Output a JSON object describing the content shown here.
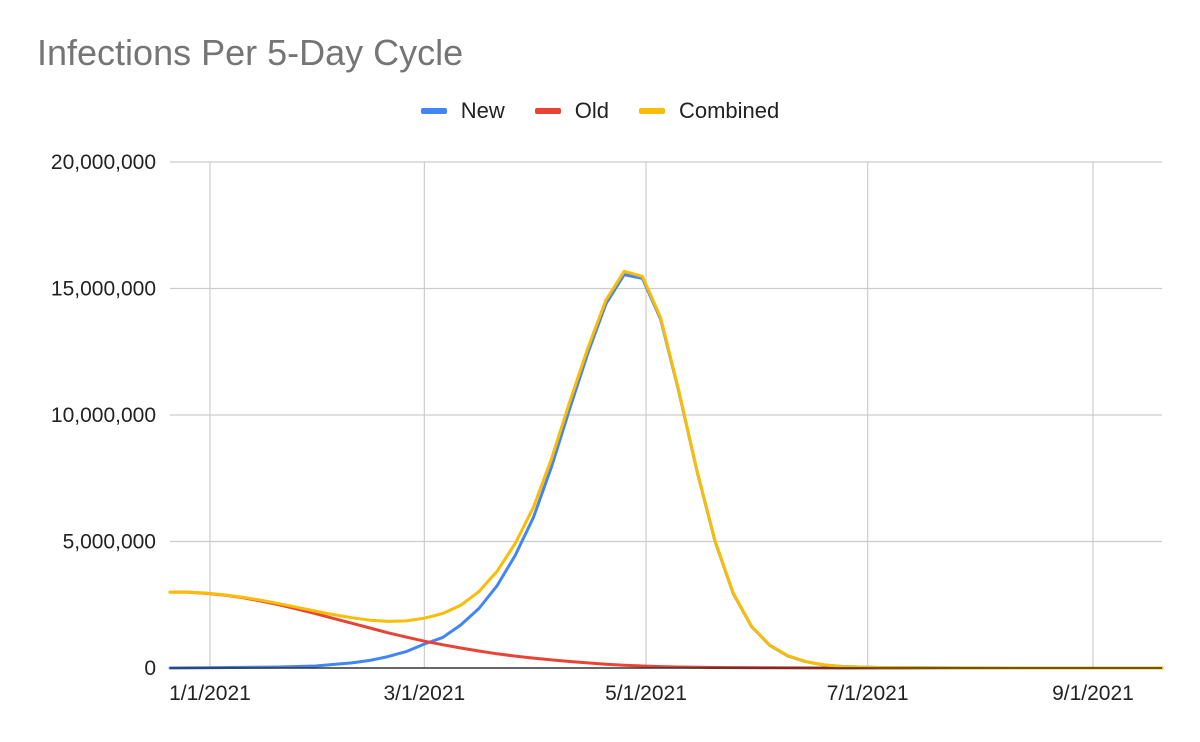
{
  "chart_data": {
    "type": "line",
    "title": "Infections Per 5-Day Cycle",
    "xlabel": "",
    "ylabel": "",
    "ylim": [
      0,
      20000000
    ],
    "y_ticks": [
      "0",
      "5,000,000",
      "10,000,000",
      "15,000,000",
      "20,000,000"
    ],
    "y_tick_values": [
      0,
      5000000,
      10000000,
      15000000,
      20000000
    ],
    "x_ticks": [
      "1/1/2021",
      "3/1/2021",
      "5/1/2021",
      "7/1/2021",
      "9/1/2021"
    ],
    "x_tick_dates": [
      "2021-01-01",
      "2021-03-01",
      "2021-05-01",
      "2021-07-01",
      "2021-09-01"
    ],
    "xlim": [
      "2020-12-21",
      "2021-09-20"
    ],
    "grid": true,
    "legend_position": "top",
    "series": [
      {
        "name": "New",
        "color": "#4285f4",
        "points": [
          [
            "2020-12-21",
            0
          ],
          [
            "2020-12-31",
            10000
          ],
          [
            "2021-01-10",
            25000
          ],
          [
            "2021-01-20",
            40000
          ],
          [
            "2021-01-30",
            80000
          ],
          [
            "2021-02-09",
            200000
          ],
          [
            "2021-02-14",
            300000
          ],
          [
            "2021-02-19",
            450000
          ],
          [
            "2021-02-24",
            650000
          ],
          [
            "2021-03-01",
            950000
          ],
          [
            "2021-03-06",
            1200000
          ],
          [
            "2021-03-11",
            1700000
          ],
          [
            "2021-03-16",
            2350000
          ],
          [
            "2021-03-21",
            3250000
          ],
          [
            "2021-03-26",
            4450000
          ],
          [
            "2021-03-31",
            5950000
          ],
          [
            "2021-04-05",
            7950000
          ],
          [
            "2021-04-10",
            10250000
          ],
          [
            "2021-04-15",
            12450000
          ],
          [
            "2021-04-20",
            14400000
          ],
          [
            "2021-04-25",
            15550000
          ],
          [
            "2021-04-30",
            15400000
          ],
          [
            "2021-05-05",
            13800000
          ],
          [
            "2021-05-10",
            10950000
          ],
          [
            "2021-05-15",
            7800000
          ],
          [
            "2021-05-20",
            5000000
          ],
          [
            "2021-05-25",
            2950000
          ],
          [
            "2021-05-30",
            1650000
          ],
          [
            "2021-06-04",
            900000
          ],
          [
            "2021-06-09",
            480000
          ],
          [
            "2021-06-14",
            250000
          ],
          [
            "2021-06-19",
            120000
          ],
          [
            "2021-06-24",
            60000
          ],
          [
            "2021-07-04",
            20000
          ],
          [
            "2021-07-24",
            5000
          ],
          [
            "2021-08-23",
            0
          ],
          [
            "2021-09-20",
            0
          ]
        ]
      },
      {
        "name": "Old",
        "color": "#ea4335",
        "points": [
          [
            "2020-12-21",
            3000000
          ],
          [
            "2020-12-26",
            3000000
          ],
          [
            "2020-12-31",
            2950000
          ],
          [
            "2021-01-05",
            2880000
          ],
          [
            "2021-01-10",
            2780000
          ],
          [
            "2021-01-15",
            2650000
          ],
          [
            "2021-01-20",
            2500000
          ],
          [
            "2021-01-25",
            2330000
          ],
          [
            "2021-01-30",
            2150000
          ],
          [
            "2021-02-04",
            1960000
          ],
          [
            "2021-02-09",
            1770000
          ],
          [
            "2021-02-14",
            1580000
          ],
          [
            "2021-02-19",
            1390000
          ],
          [
            "2021-02-24",
            1220000
          ],
          [
            "2021-03-01",
            1060000
          ],
          [
            "2021-03-06",
            920000
          ],
          [
            "2021-03-11",
            790000
          ],
          [
            "2021-03-16",
            670000
          ],
          [
            "2021-03-21",
            560000
          ],
          [
            "2021-03-26",
            470000
          ],
          [
            "2021-03-31",
            390000
          ],
          [
            "2021-04-05",
            320000
          ],
          [
            "2021-04-10",
            255000
          ],
          [
            "2021-04-15",
            200000
          ],
          [
            "2021-04-20",
            150000
          ],
          [
            "2021-04-25",
            110000
          ],
          [
            "2021-04-30",
            80000
          ],
          [
            "2021-05-05",
            55000
          ],
          [
            "2021-05-10",
            40000
          ],
          [
            "2021-05-20",
            20000
          ],
          [
            "2021-06-04",
            8000
          ],
          [
            "2021-06-24",
            0
          ],
          [
            "2021-09-20",
            0
          ]
        ]
      },
      {
        "name": "Combined",
        "color": "#fbbc04",
        "points": [
          [
            "2020-12-21",
            3000000
          ],
          [
            "2020-12-26",
            3000000
          ],
          [
            "2020-12-31",
            2960000
          ],
          [
            "2021-01-05",
            2890000
          ],
          [
            "2021-01-10",
            2800000
          ],
          [
            "2021-01-15",
            2680000
          ],
          [
            "2021-01-20",
            2540000
          ],
          [
            "2021-01-25",
            2400000
          ],
          [
            "2021-01-30",
            2250000
          ],
          [
            "2021-02-04",
            2110000
          ],
          [
            "2021-02-09",
            1990000
          ],
          [
            "2021-02-14",
            1890000
          ],
          [
            "2021-02-19",
            1840000
          ],
          [
            "2021-02-24",
            1860000
          ],
          [
            "2021-03-01",
            1970000
          ],
          [
            "2021-03-06",
            2150000
          ],
          [
            "2021-03-11",
            2480000
          ],
          [
            "2021-03-16",
            3020000
          ],
          [
            "2021-03-21",
            3820000
          ],
          [
            "2021-03-26",
            4920000
          ],
          [
            "2021-03-31",
            6350000
          ],
          [
            "2021-04-05",
            8270000
          ],
          [
            "2021-04-10",
            10520000
          ],
          [
            "2021-04-15",
            12650000
          ],
          [
            "2021-04-20",
            14550000
          ],
          [
            "2021-04-25",
            15680000
          ],
          [
            "2021-04-30",
            15480000
          ],
          [
            "2021-05-05",
            13860000
          ],
          [
            "2021-05-10",
            10990000
          ],
          [
            "2021-05-15",
            7820000
          ],
          [
            "2021-05-20",
            5020000
          ],
          [
            "2021-05-25",
            2970000
          ],
          [
            "2021-05-30",
            1660000
          ],
          [
            "2021-06-04",
            910000
          ],
          [
            "2021-06-09",
            485000
          ],
          [
            "2021-06-14",
            252000
          ],
          [
            "2021-06-19",
            121000
          ],
          [
            "2021-06-24",
            60000
          ],
          [
            "2021-07-04",
            20000
          ],
          [
            "2021-07-24",
            5000
          ],
          [
            "2021-08-23",
            0
          ],
          [
            "2021-09-20",
            0
          ]
        ]
      }
    ]
  }
}
